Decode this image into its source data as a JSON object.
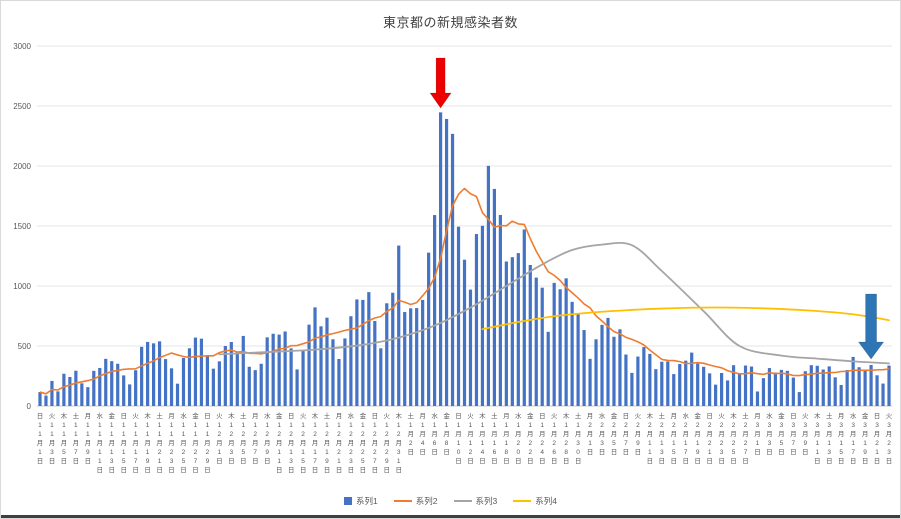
{
  "title": "東京都の新規感染者数",
  "legend": {
    "items": [
      {
        "label": "系列1",
        "color": "#4472C4",
        "marker": "square"
      },
      {
        "label": "系列2",
        "color": "#ED7D31",
        "marker": "line"
      },
      {
        "label": "系列3",
        "color": "#A5A5A5",
        "marker": "line"
      },
      {
        "label": "系列4",
        "color": "#FFC000",
        "marker": "line"
      }
    ]
  },
  "chart_data": {
    "type": "bar",
    "title": "東京都の新規感染者数",
    "grid": true,
    "legend_position": "bottom",
    "y_axis": {
      "min": 0,
      "max": 3000,
      "step": 500,
      "ticks": [
        "0",
        "500",
        "1000",
        "1500",
        "2000",
        "2500",
        "3000"
      ]
    },
    "x_axis": {
      "note": "labels every 2 days, characters stacked vertically (曜日/月/日)",
      "labels": [
        "日11月1日",
        "火11月3日",
        "木11月5日",
        "土11月7日",
        "月11月9日",
        "水11月11日",
        "金11月13日",
        "日11月15日",
        "火11月17日",
        "木11月19日",
        "土11月21日",
        "月11月23日",
        "水11月25日",
        "金11月27日",
        "日11月29日",
        "火12月1日",
        "木12月3日",
        "土12月5日",
        "月12月7日",
        "水12月9日",
        "金12月11日",
        "日12月13日",
        "火12月15日",
        "木12月17日",
        "土12月19日",
        "月12月21日",
        "水12月23日",
        "金12月25日",
        "日12月27日",
        "火12月29日",
        "木12月31日",
        "土1月2日",
        "月1月4日",
        "水1月6日",
        "金1月8日",
        "日1月10日",
        "火1月12日",
        "木1月14日",
        "土1月16日",
        "月1月18日",
        "水1月20日",
        "金1月22日",
        "日1月24日",
        "火1月26日",
        "木1月28日",
        "土1月30日",
        "月2月1日",
        "水2月3日",
        "金2月5日",
        "日2月7日",
        "火2月9日",
        "木2月11日",
        "土2月13日",
        "月2月15日",
        "水2月17日",
        "金2月19日",
        "日2月21日",
        "火2月23日",
        "木2月25日",
        "土2月27日",
        "月3月1日",
        "水3月3日",
        "金3月5日",
        "日3月7日",
        "火3月9日",
        "木3月11日",
        "土3月13日",
        "月3月15日",
        "水3月17日",
        "金3月19日",
        "日3月21日",
        "火3月23日"
      ]
    },
    "series": [
      {
        "name": "系列1",
        "type": "bar",
        "color": "#4472C4",
        "values": [
          116,
          87,
          209,
          122,
          269,
          242,
          294,
          189,
          157,
          293,
          317,
          393,
          374,
          352,
          255,
          180,
          298,
          493,
          534,
          522,
          539,
          391,
          314,
          186,
          401,
          481,
          570,
          561,
          418,
          311,
          372,
          500,
          533,
          449,
          584,
          327,
          299,
          352,
          572,
          602,
          595,
          621,
          480,
          305,
          460,
          678,
          822,
          664,
          736,
          556,
          392,
          563,
          748,
          888,
          884,
          949,
          708,
          481,
          856,
          944,
          1337,
          783,
          814,
          816,
          884,
          1278,
          1591,
          2447,
          2392,
          2268,
          1494,
          1219,
          970,
          1433,
          1502,
          2001,
          1809,
          1592,
          1204,
          1240,
          1274,
          1471,
          1175,
          1070,
          986,
          618,
          1026,
          973,
          1064,
          868,
          769,
          633,
          393,
          556,
          676,
          734,
          577,
          639,
          429,
          276,
          412,
          491,
          434,
          307,
          369,
          371,
          266,
          350,
          378,
          445,
          353,
          327,
          272,
          178,
          275,
          213,
          340,
          270,
          337,
          329,
          121,
          232,
          316,
          279,
          301,
          293,
          237,
          116,
          290,
          340,
          335,
          304,
          330,
          239,
          175,
          300,
          409,
          323,
          303,
          342,
          256,
          187,
          337
        ]
      },
      {
        "name": "系列2",
        "type": "line",
        "color": "#ED7D31",
        "derivation": "7-day moving average of 系列1"
      },
      {
        "name": "系列3",
        "type": "line",
        "color": "#A5A5A5",
        "points": [
          [
            30,
            430
          ],
          [
            38,
            450
          ],
          [
            46,
            470
          ],
          [
            54,
            510
          ],
          [
            60,
            570
          ],
          [
            66,
            670
          ],
          [
            72,
            820
          ],
          [
            78,
            1000
          ],
          [
            84,
            1180
          ],
          [
            89,
            1300
          ],
          [
            94,
            1345
          ],
          [
            99,
            1340
          ],
          [
            104,
            1125
          ],
          [
            111,
            790
          ],
          [
            117,
            500
          ],
          [
            124,
            420
          ],
          [
            130,
            395
          ],
          [
            136,
            372
          ],
          [
            142,
            355
          ]
        ]
      },
      {
        "name": "系列4",
        "type": "line",
        "color": "#FFC000",
        "points": [
          [
            74,
            640
          ],
          [
            80,
            700
          ],
          [
            86,
            748
          ],
          [
            92,
            778
          ],
          [
            98,
            798
          ],
          [
            104,
            812
          ],
          [
            110,
            820
          ],
          [
            116,
            820
          ],
          [
            122,
            812
          ],
          [
            128,
            798
          ],
          [
            134,
            775
          ],
          [
            138,
            750
          ],
          [
            142,
            715
          ]
        ]
      }
    ],
    "annotations": [
      {
        "type": "arrow-down",
        "color": "#EE0000",
        "at_index": 67
      },
      {
        "type": "arrow-down",
        "color": "#2E75B6",
        "at_index": 139
      }
    ]
  }
}
